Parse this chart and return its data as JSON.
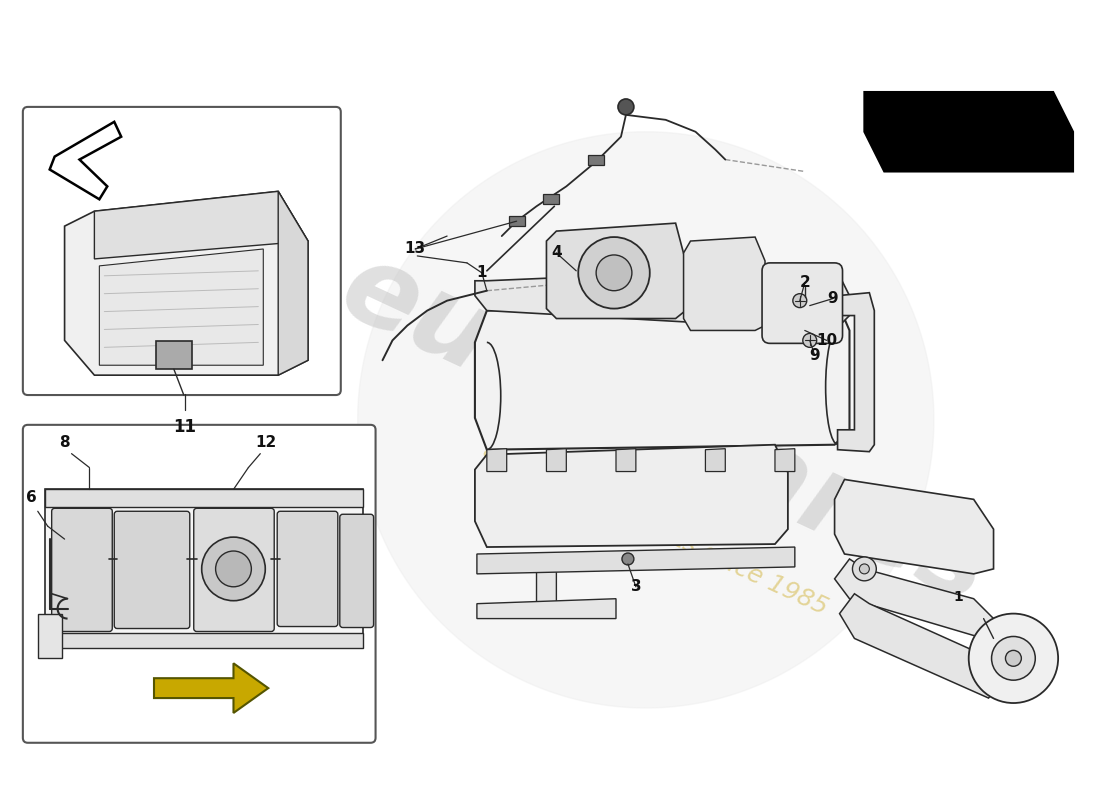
{
  "bg": "#ffffff",
  "lc": "#2a2a2a",
  "llc": "#999999",
  "blc": "#444444",
  "wm_color": "#cccccc",
  "wm_gold": "#d4b84a",
  "arrow_fill": "#000000",
  "yellow_fill": "#c8a800"
}
